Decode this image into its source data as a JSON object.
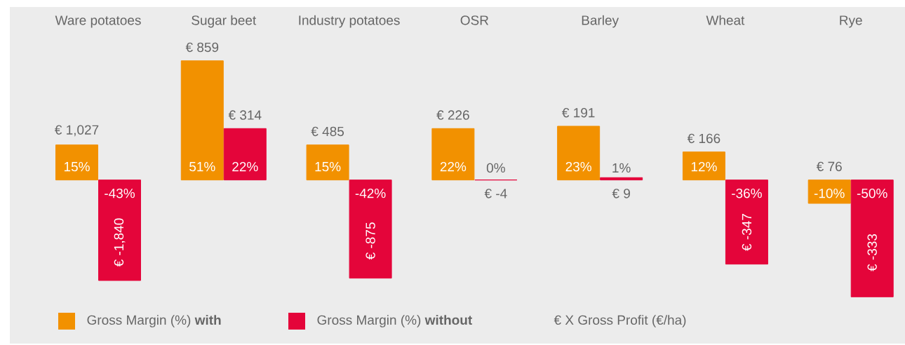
{
  "chart_data": {
    "type": "bar",
    "categories": [
      "Ware potatoes",
      "Sugar beet",
      "Industry potatoes",
      "OSR",
      "Barley",
      "Wheat",
      "Rye"
    ],
    "series": [
      {
        "name": "Gross Margin (%) **with**",
        "color": "#f29100",
        "values": [
          15,
          51,
          15,
          22,
          23,
          12,
          -10
        ],
        "value_labels": [
          "15%",
          "51%",
          "15%",
          "22%",
          "23%",
          "12%",
          "-10%"
        ]
      },
      {
        "name": "Gross Margin (%) **without**",
        "color": "#e4053a",
        "values": [
          -43,
          22,
          -42,
          0,
          1,
          -36,
          -50
        ],
        "value_labels": [
          "-43%",
          "22%",
          "-42%",
          "0%",
          "1%",
          "-36%",
          "-50%"
        ]
      }
    ],
    "annotations": [
      {
        "text": "€ 1,027",
        "x": "Ware potatoes",
        "y": 15
      },
      {
        "text": "€ -1,840",
        "x": "Ware potatoes",
        "y": -43
      },
      {
        "text": "€ 859",
        "x": "Sugar beet",
        "y": 51
      },
      {
        "text": "€ 314",
        "x": "Sugar beet",
        "y": 22
      },
      {
        "text": "€ 485",
        "x": "Industry potatoes",
        "y": 15
      },
      {
        "text": "€ -875",
        "x": "Industry potatoes",
        "y": -42
      },
      {
        "text": "€ 226",
        "x": "OSR",
        "y": 22
      },
      {
        "text": "€ -4",
        "x": "OSR",
        "y": 0
      },
      {
        "text": "€ 191",
        "x": "Barley",
        "y": 23
      },
      {
        "text": "€ 9",
        "x": "Barley",
        "y": 1
      },
      {
        "text": "€ 166",
        "x": "Wheat",
        "y": 12
      },
      {
        "text": "€ -347",
        "x": "Wheat",
        "y": -36
      },
      {
        "text": "€ 76",
        "x": "Rye",
        "y": -10
      },
      {
        "text": "€ -333",
        "x": "Rye",
        "y": -50
      },
      "€ X Gross Profit (€/ha)"
    ],
    "legend": "bottom"
  }
}
